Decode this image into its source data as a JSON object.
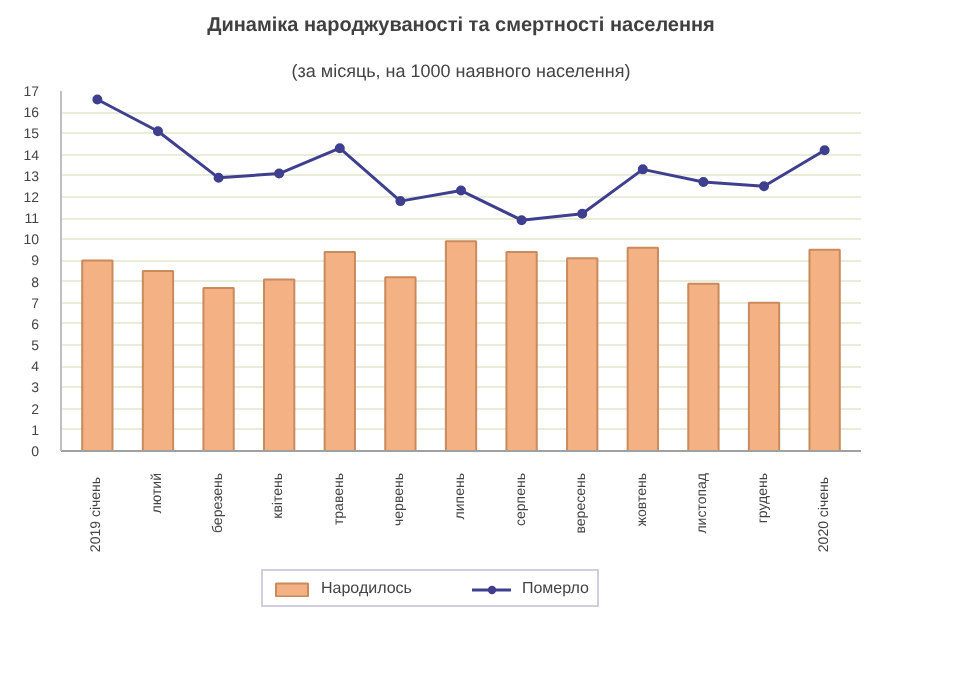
{
  "chart_data": {
    "type": "bar",
    "title": "Динаміка народжуваності та смертності населення",
    "subtitle": "(за місяць, на 1000 наявного населення)",
    "categories": [
      "2019  січень",
      "лютий",
      "березень",
      "квітень",
      "травень",
      "червень",
      "липень",
      "серпень",
      "вересень",
      "жовтень",
      "листопад",
      "грудень",
      "2020  січень"
    ],
    "series": [
      {
        "name": "Народилось",
        "color": "#f4b183",
        "values": [
          9.0,
          8.5,
          7.7,
          8.1,
          9.4,
          8.2,
          9.9,
          9.4,
          9.1,
          9.6,
          7.9,
          7.0,
          9.5
        ]
      },
      {
        "name": "Померло",
        "type": "line",
        "color": "#3f3f8f",
        "values": [
          16.6,
          15.1,
          12.9,
          13.1,
          14.3,
          11.8,
          12.3,
          10.9,
          11.2,
          13.3,
          12.7,
          12.5,
          14.2
        ]
      }
    ],
    "ylim": [
      0,
      17
    ],
    "yticks": [
      0,
      1,
      2,
      3,
      4,
      5,
      6,
      7,
      8,
      9,
      10,
      11,
      12,
      13,
      14,
      15,
      16,
      17
    ],
    "grid": "y",
    "legend": "bottom",
    "marker": "circle",
    "line_style": "solid"
  }
}
